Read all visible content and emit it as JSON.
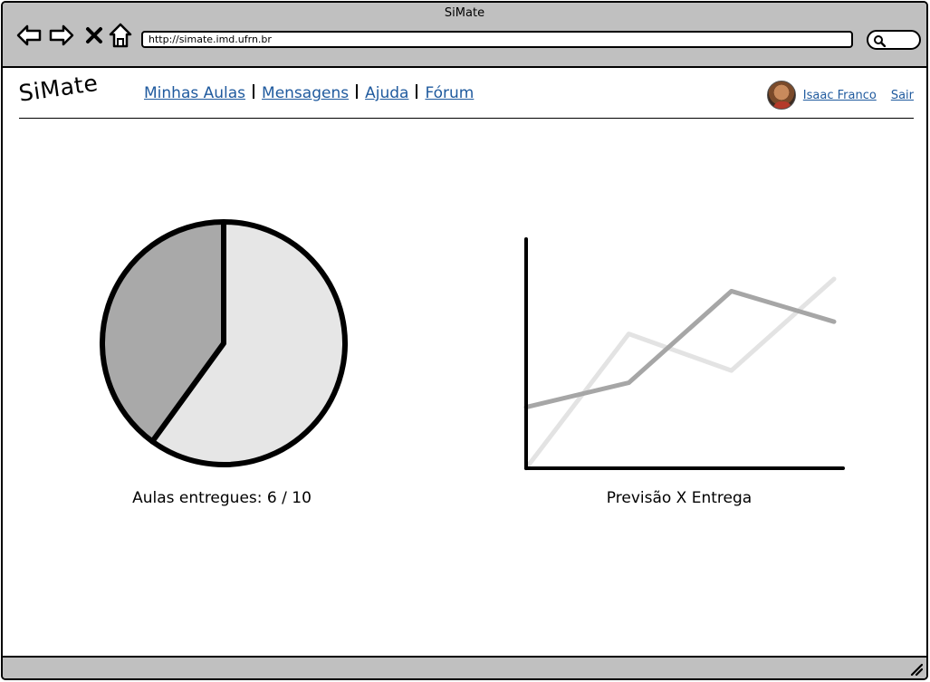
{
  "window": {
    "title": "SiMate",
    "url": "http://simate.imd.ufrn.br"
  },
  "icons": {
    "back": "arrow-left-icon",
    "forward": "arrow-right-icon",
    "stop": "close-icon",
    "home": "home-icon",
    "search": "search-icon",
    "resize": "resize-grip-icon"
  },
  "header": {
    "logo": "SiMate",
    "nav": [
      {
        "label": "Minhas Aulas"
      },
      {
        "label": "Mensagens"
      },
      {
        "label": "Ajuda"
      },
      {
        "label": "Fórum"
      }
    ],
    "user_name": "Isaac Franco",
    "logout": "Sair"
  },
  "colors": {
    "link": "#1f5a9e",
    "chrome": "#c0c0c0",
    "pie_light": "#e6e6e6",
    "pie_dark": "#a9a9a9",
    "line_light": "#e3e3e3",
    "line_dark": "#a6a6a6"
  },
  "chart_data": [
    {
      "type": "pie",
      "title": "Aulas entregues: 6 / 10",
      "values": [
        6,
        4
      ],
      "colors": [
        "#e6e6e6",
        "#a9a9a9"
      ]
    },
    {
      "type": "line",
      "title": "Previsão X Entrega",
      "x": [
        0,
        1,
        2,
        3
      ],
      "series": [
        {
          "values": [
            0,
            2.2,
            1.6,
            3.1
          ],
          "color": "#e3e3e3"
        },
        {
          "values": [
            1.0,
            1.4,
            2.9,
            2.4
          ],
          "color": "#a6a6a6"
        }
      ],
      "ylim": [
        0,
        3.5
      ],
      "grid": false,
      "legend": false
    }
  ]
}
